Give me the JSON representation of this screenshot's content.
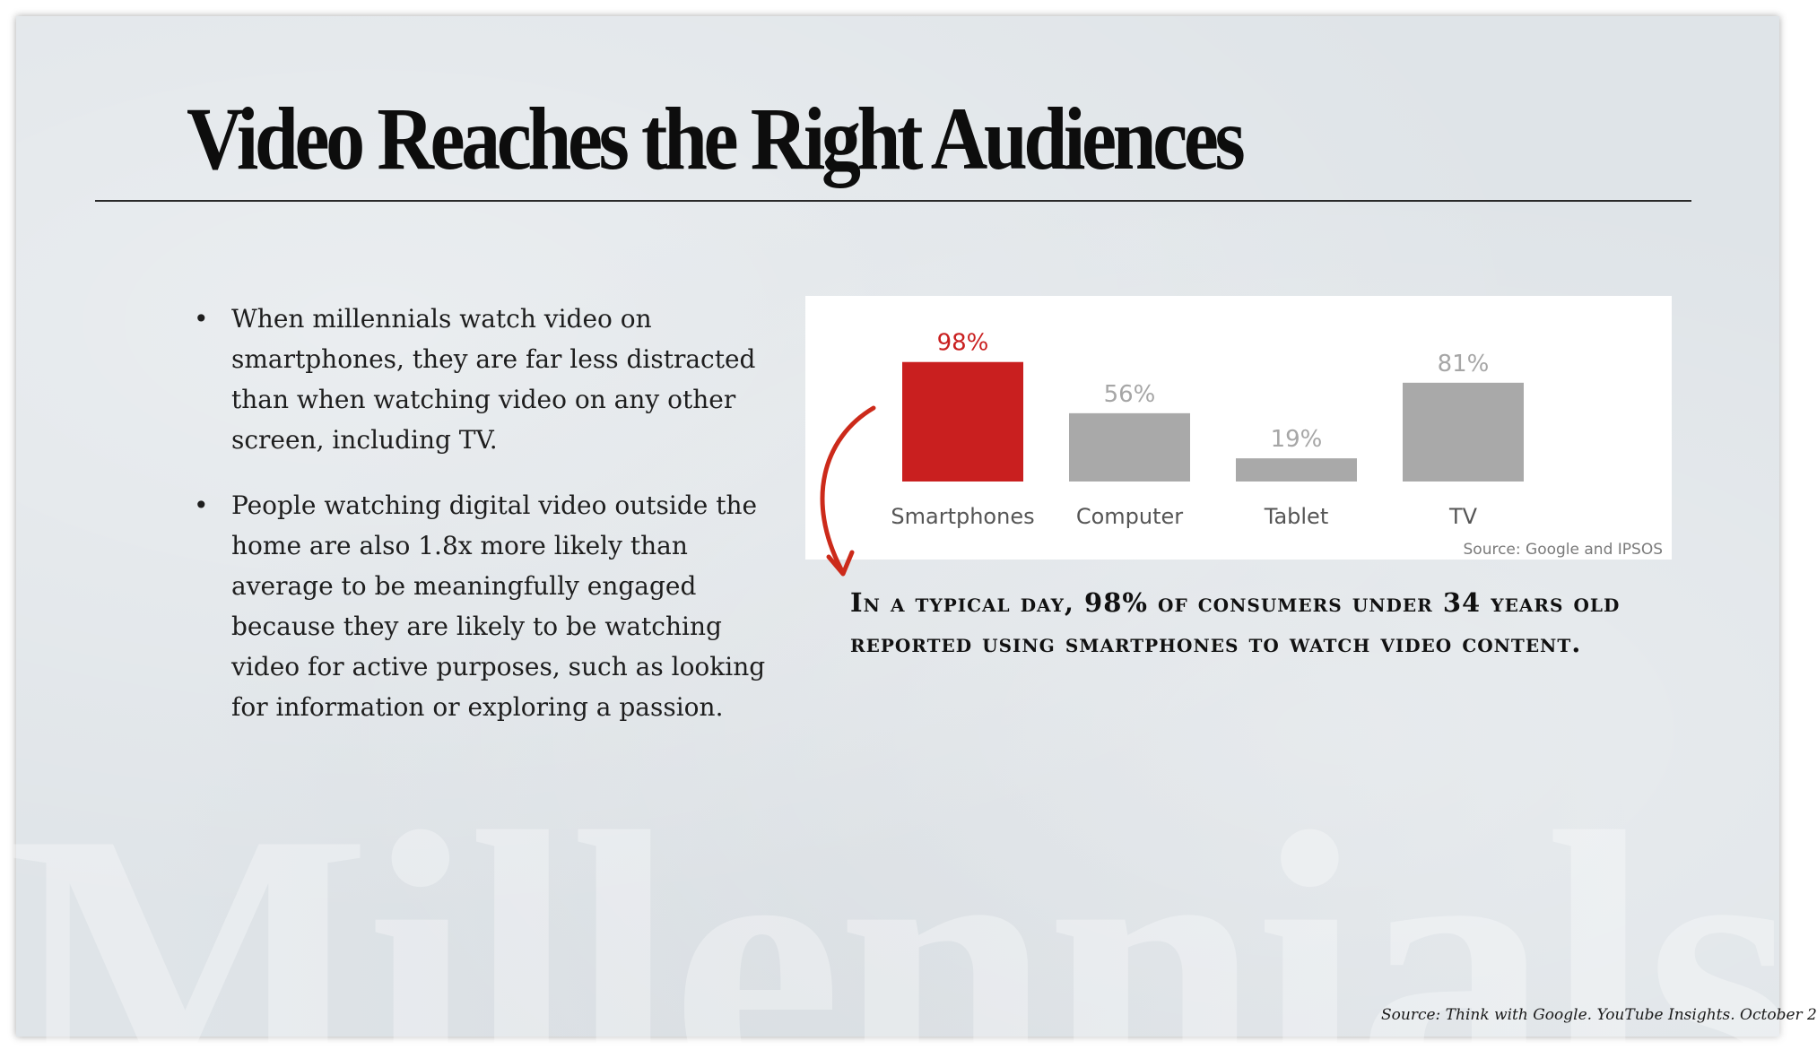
{
  "slide": {
    "title": "Video Reaches the Right Audiences",
    "bullets": [
      "When millennials watch video on smartphones, they are far less distracted than when watching video on any other screen, including TV.",
      "People watching digital video outside the home are also 1.8x more likely than average to be meaningfully engaged because they are likely to be watching video for active purposes, such as looking for information or exploring a passion."
    ],
    "bullet_glyph": "•",
    "caption": "In a typical day, 98% of consumers under 34 years old reported using smartphones to watch video content.",
    "footer_source": "Source: Think with Google. YouTube Insights. October 2",
    "watermark_text": "Millennials",
    "colors": {
      "highlight": "#c91f1f",
      "bar": "#a9a9a9",
      "arrow": "#cc2a1a"
    }
  },
  "chart_data": {
    "type": "bar",
    "categories": [
      "Smartphones",
      "Computer",
      "Tablet",
      "TV"
    ],
    "values": [
      98,
      56,
      19,
      81
    ],
    "value_labels": [
      "98%",
      "56%",
      "19%",
      "81%"
    ],
    "highlight_index": 0,
    "source": "Source: Google and IPSOS",
    "ylim": [
      0,
      100
    ],
    "grid": false
  }
}
